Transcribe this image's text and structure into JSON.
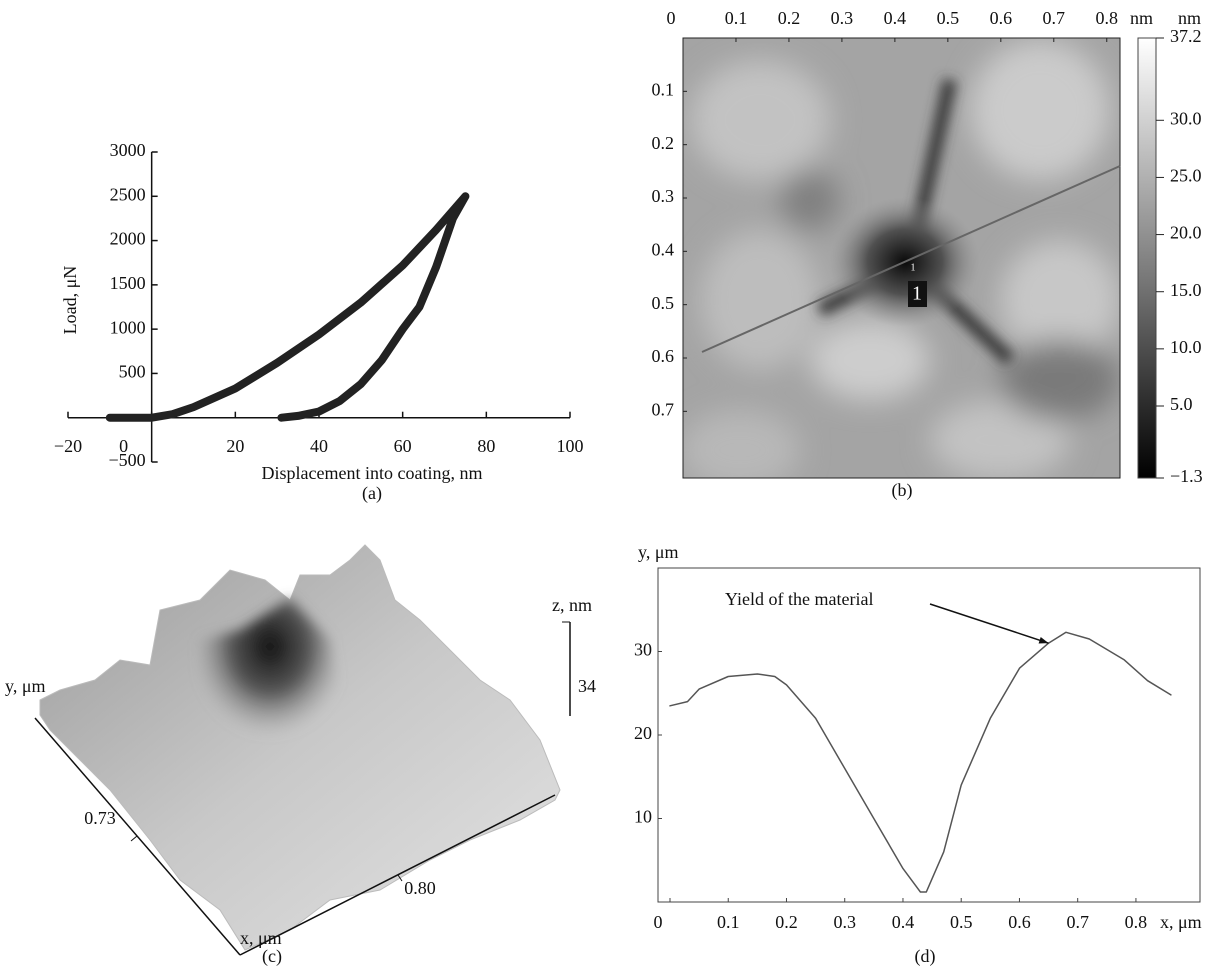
{
  "chart_data": [
    {
      "type": "line",
      "label": "(a)",
      "xlabel": "Displacement into coating, nm",
      "ylabel": "Load, μN",
      "x": [
        -10,
        -5,
        0,
        5,
        10,
        20,
        30,
        40,
        50,
        60,
        68,
        75,
        72,
        68,
        64,
        60,
        55,
        50,
        45,
        40,
        35,
        31
      ],
      "values": [
        0,
        0,
        0,
        40,
        120,
        330,
        620,
        940,
        1300,
        1720,
        2120,
        2500,
        2250,
        1700,
        1250,
        1000,
        650,
        380,
        190,
        70,
        20,
        0
      ],
      "color": "#222222",
      "xlim": [
        -20,
        100
      ],
      "xticks": [
        {
          "value": -20,
          "label": "−20"
        },
        0,
        20,
        40,
        60,
        80,
        100
      ],
      "ylim": [
        -500,
        3000
      ],
      "yticks": [
        {
          "value": -500,
          "label": "−500"
        },
        500,
        1000,
        1500,
        2000,
        2500,
        3000
      ]
    },
    {
      "type": "heatmap",
      "label": "(b)",
      "xunit": "nm",
      "colorbar_unit": "nm",
      "marker_label": "1",
      "xlim": [
        0,
        0.825
      ],
      "xticks": [
        0,
        0.1,
        0.2,
        0.3,
        0.4,
        0.5,
        0.6,
        0.7,
        0.8
      ],
      "ylim": [
        0,
        0.825
      ],
      "yticks": [
        0.1,
        0.2,
        0.3,
        0.4,
        0.5,
        0.6,
        0.7
      ],
      "zlim": [
        -1.3,
        37.2
      ],
      "zticks": [
        {
          "value": 37.2,
          "label": "37.2"
        },
        {
          "value": 30,
          "label": "30.0"
        },
        {
          "value": 25,
          "label": "25.0"
        },
        {
          "value": 20,
          "label": "20.0"
        },
        {
          "value": 15,
          "label": "15.0"
        },
        {
          "value": 10,
          "label": "10.0"
        },
        {
          "value": 5,
          "label": "5.0"
        },
        {
          "value": -1.3,
          "label": "−1.3"
        }
      ]
    },
    {
      "type": "surface3d",
      "label": "(c)",
      "xlabel": "x, μm",
      "ylabel": "y, μm",
      "zlabel": "z, nm",
      "xticks": [
        {
          "value": 0.8,
          "label": "0.80"
        }
      ],
      "yticks": [
        0.73
      ],
      "zticks": [
        34
      ]
    },
    {
      "type": "line",
      "label": "(d)",
      "xlabel": "x, μm",
      "ylabel": "y, μm",
      "annotation": {
        "text": "Yield of the material",
        "x": 0.65,
        "y": 31
      },
      "x": [
        0,
        0.03,
        0.05,
        0.1,
        0.15,
        0.18,
        0.2,
        0.25,
        0.3,
        0.35,
        0.4,
        0.43,
        0.44,
        0.47,
        0.5,
        0.55,
        0.6,
        0.65,
        0.68,
        0.72,
        0.78,
        0.82,
        0.86
      ],
      "values": [
        23.5,
        24,
        25.5,
        27,
        27.3,
        27,
        26,
        22,
        16,
        10,
        4,
        1.2,
        1.2,
        6,
        14,
        22,
        28,
        31,
        32.3,
        31.5,
        29,
        26.5,
        24.8
      ],
      "color": "#555555",
      "xlim": [
        0,
        0.91
      ],
      "xticks": [
        0,
        0.1,
        0.2,
        0.3,
        0.4,
        0.5,
        0.6,
        0.7,
        0.8
      ],
      "ylim": [
        0,
        40
      ],
      "yticks": [
        10,
        20,
        30
      ]
    }
  ]
}
